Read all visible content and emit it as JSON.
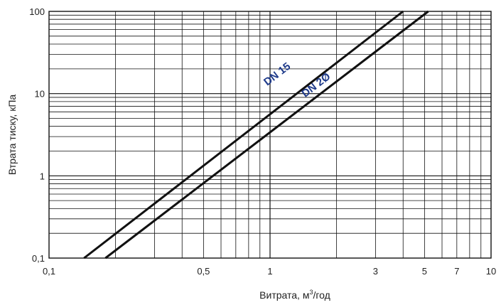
{
  "chart_data": {
    "type": "line",
    "xscale": "log",
    "yscale": "log",
    "xlim": [
      0.1,
      10
    ],
    "ylim": [
      0.1,
      100
    ],
    "grid": true,
    "xlabel_main": "Витрата, м",
    "xlabel_sup": "3",
    "xlabel_tail": "/год",
    "ylabel": "Втрата тиску, кПа",
    "xticks": [
      {
        "value": 0.1,
        "label": "0,1"
      },
      {
        "value": 0.5,
        "label": "0,5"
      },
      {
        "value": 1,
        "label": "1"
      },
      {
        "value": 3,
        "label": "3"
      },
      {
        "value": 5,
        "label": "5"
      },
      {
        "value": 7,
        "label": "7"
      },
      {
        "value": 10,
        "label": "10"
      }
    ],
    "yticks": [
      {
        "value": 0.1,
        "label": "0,1"
      },
      {
        "value": 1,
        "label": "1"
      },
      {
        "value": 10,
        "label": "10"
      },
      {
        "value": 100,
        "label": "100"
      }
    ],
    "series": [
      {
        "name": "DN 15",
        "x": [
          0.144,
          4.0
        ],
        "y": [
          0.1,
          100
        ],
        "label_at": [
          1.1,
          16
        ],
        "label_color": "#1e3a8a"
      },
      {
        "name": "DN 2Ø",
        "x": [
          0.18,
          5.2
        ],
        "y": [
          0.1,
          100
        ],
        "label_at": [
          1.65,
          11.8
        ],
        "label_color": "#1e3a8a"
      }
    ],
    "line_color": "#111111"
  }
}
